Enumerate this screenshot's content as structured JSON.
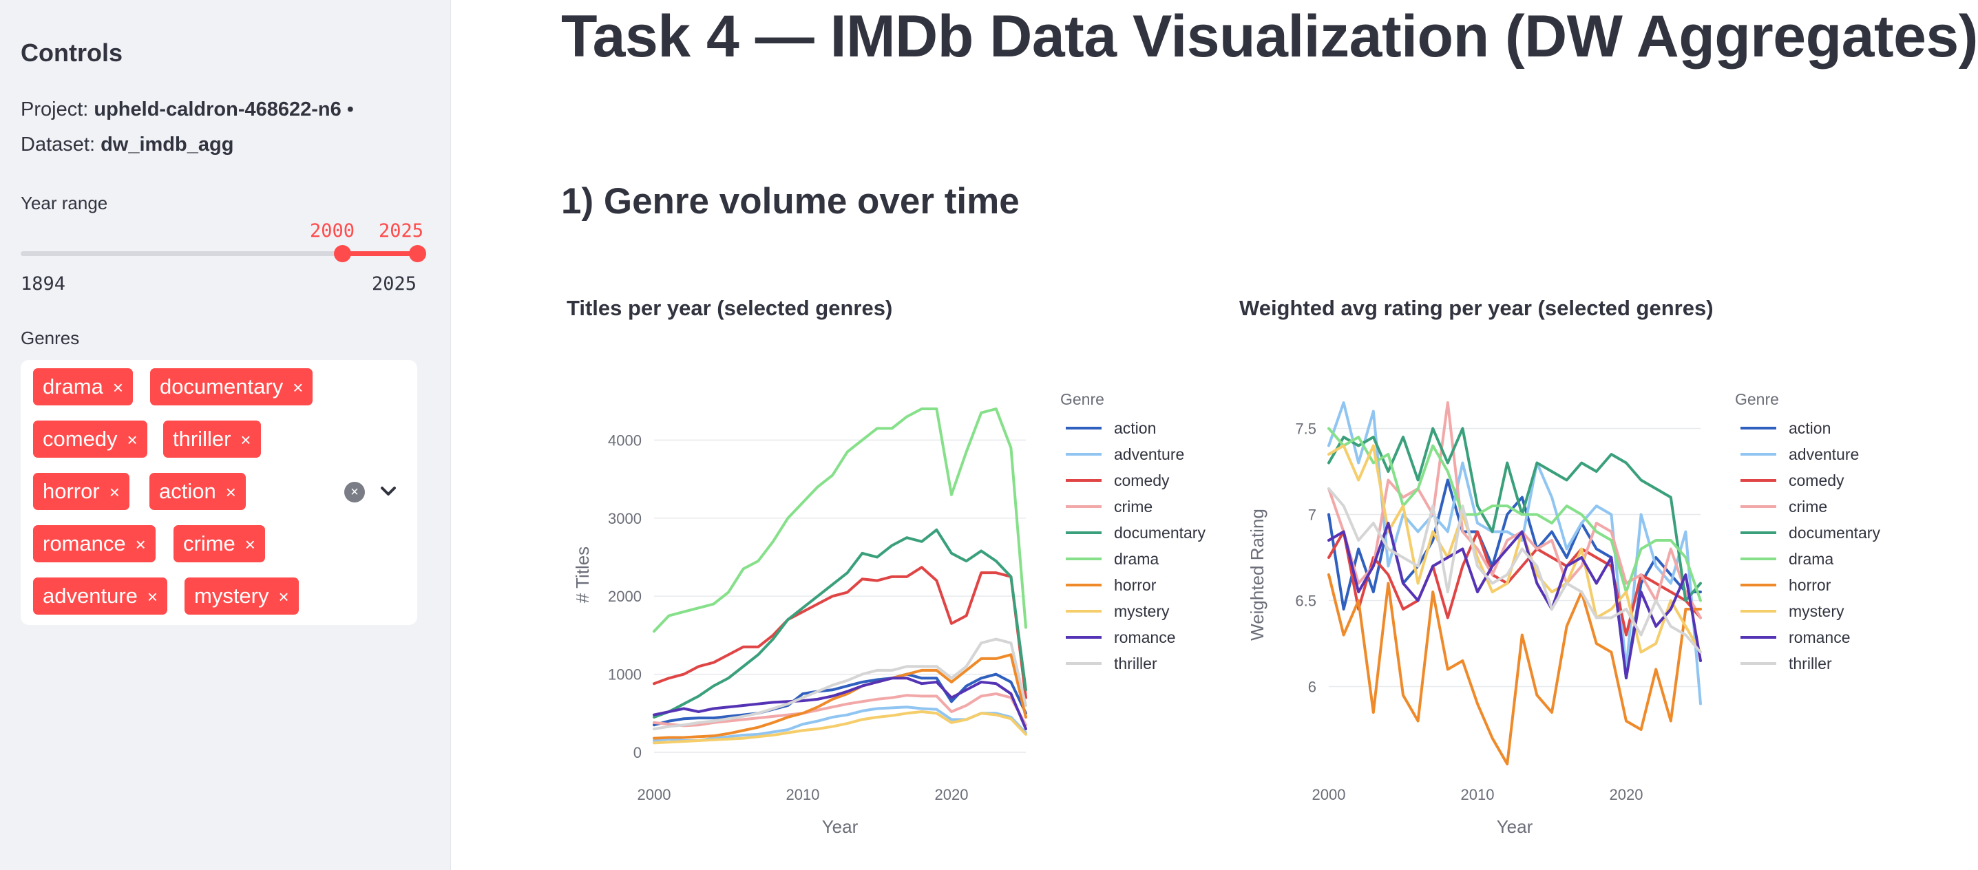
{
  "sidebar": {
    "heading": "Controls",
    "project_label": "Project: ",
    "project_value": "upheld-caldron-468622-n6",
    "dot": " •",
    "dataset_label": "Dataset: ",
    "dataset_value": "dw_imdb_agg",
    "year_range_label": "Year range",
    "year_range_min": "1894",
    "year_range_max": "2025",
    "year_selected_low": "2000",
    "year_selected_high": "2025",
    "slider_low_fraction": 0.809,
    "slider_high_fraction": 1.0,
    "genres_label": "Genres",
    "genre_tags": [
      "drama",
      "documentary",
      "comedy",
      "thriller",
      "horror",
      "action",
      "romance",
      "crime",
      "adventure",
      "mystery"
    ],
    "tag_remove_glyph": "×",
    "clear_icon": "clear-icon",
    "dropdown_icon": "chevron-down-icon",
    "accent_color": "#ff4b4b"
  },
  "main": {
    "title": "Task 4 — IMDb Data Visualization (DW Aggregates)",
    "section_heading": "1) Genre volume over time"
  },
  "chart_data": [
    {
      "type": "line",
      "title": "Titles per year (selected genres)",
      "xlabel": "Year",
      "ylabel": "# Titles",
      "legend_title": "Genre",
      "legend_placement": "right",
      "xlim": [
        2000,
        2025
      ],
      "ylim": [
        -150,
        4700
      ],
      "x_ticks": [
        2000,
        2010,
        2020
      ],
      "y_ticks": [
        0,
        1000,
        2000,
        3000,
        4000
      ],
      "grid": true,
      "x": [
        2000,
        2001,
        2002,
        2003,
        2004,
        2005,
        2006,
        2007,
        2008,
        2009,
        2010,
        2011,
        2012,
        2013,
        2014,
        2015,
        2016,
        2017,
        2018,
        2019,
        2020,
        2021,
        2022,
        2023,
        2024,
        2025
      ],
      "series": [
        {
          "name": "action",
          "color": "#2f5fbf",
          "values": [
            350,
            400,
            430,
            440,
            440,
            460,
            480,
            500,
            550,
            600,
            750,
            780,
            800,
            850,
            900,
            930,
            950,
            1000,
            950,
            950,
            650,
            850,
            950,
            1000,
            900,
            500
          ]
        },
        {
          "name": "adventure",
          "color": "#90c5f2",
          "values": [
            150,
            170,
            150,
            150,
            180,
            200,
            220,
            230,
            260,
            290,
            360,
            400,
            450,
            480,
            530,
            560,
            570,
            580,
            560,
            550,
            420,
            420,
            500,
            500,
            450,
            250
          ]
        },
        {
          "name": "comedy",
          "color": "#e04545",
          "values": [
            880,
            950,
            1000,
            1100,
            1150,
            1250,
            1350,
            1350,
            1500,
            1700,
            1800,
            1900,
            2000,
            2050,
            2220,
            2200,
            2250,
            2250,
            2370,
            2200,
            1650,
            1750,
            2300,
            2300,
            2250,
            700
          ]
        },
        {
          "name": "crime",
          "color": "#f2a8a8",
          "values": [
            380,
            360,
            340,
            350,
            380,
            400,
            420,
            440,
            460,
            480,
            500,
            540,
            580,
            620,
            650,
            680,
            700,
            730,
            720,
            720,
            520,
            600,
            720,
            750,
            700,
            350
          ]
        },
        {
          "name": "documentary",
          "color": "#3aa07b",
          "values": [
            450,
            520,
            620,
            720,
            850,
            950,
            1100,
            1250,
            1450,
            1700,
            1850,
            2000,
            2150,
            2300,
            2550,
            2500,
            2650,
            2750,
            2700,
            2850,
            2550,
            2450,
            2580,
            2450,
            2250,
            800
          ]
        },
        {
          "name": "drama",
          "color": "#86e08a",
          "values": [
            1550,
            1750,
            1800,
            1850,
            1900,
            2050,
            2350,
            2450,
            2700,
            3000,
            3200,
            3400,
            3550,
            3850,
            4000,
            4150,
            4150,
            4300,
            4400,
            4400,
            3300,
            3850,
            4350,
            4400,
            3900,
            1600
          ]
        },
        {
          "name": "horror",
          "color": "#ef8a2a",
          "values": [
            180,
            190,
            190,
            200,
            210,
            240,
            280,
            320,
            380,
            450,
            500,
            580,
            680,
            750,
            850,
            900,
            950,
            1000,
            1050,
            1050,
            900,
            1050,
            1200,
            1200,
            1250,
            450
          ]
        },
        {
          "name": "mystery",
          "color": "#f5cd6a",
          "values": [
            120,
            130,
            140,
            150,
            160,
            170,
            180,
            200,
            220,
            250,
            280,
            300,
            330,
            370,
            420,
            450,
            470,
            500,
            520,
            500,
            380,
            420,
            500,
            480,
            430,
            230
          ]
        },
        {
          "name": "romance",
          "color": "#5533b5",
          "values": [
            480,
            520,
            560,
            520,
            560,
            580,
            600,
            620,
            640,
            650,
            660,
            680,
            720,
            780,
            850,
            900,
            950,
            950,
            880,
            900,
            700,
            800,
            900,
            880,
            750,
            300
          ]
        },
        {
          "name": "thriller",
          "color": "#d5d5d5",
          "values": [
            300,
            330,
            350,
            380,
            400,
            430,
            460,
            500,
            560,
            620,
            700,
            780,
            860,
            920,
            1000,
            1050,
            1050,
            1100,
            1100,
            1100,
            950,
            1100,
            1400,
            1450,
            1400,
            600
          ]
        }
      ]
    },
    {
      "type": "line",
      "title": "Weighted avg rating per year (selected genres)",
      "xlabel": "Year",
      "ylabel": "Weighted Rating",
      "legend_title": "Genre",
      "legend_placement": "right",
      "xlim": [
        2000,
        2025
      ],
      "ylim": [
        5.55,
        7.75
      ],
      "x_ticks": [
        2000,
        2010,
        2020
      ],
      "y_ticks": [
        6,
        6.5,
        7,
        7.5
      ],
      "y_tick_labels": [
        "6",
        "6.5",
        "7",
        "7.5"
      ],
      "grid": true,
      "x": [
        2000,
        2001,
        2002,
        2003,
        2004,
        2005,
        2006,
        2007,
        2008,
        2009,
        2010,
        2011,
        2012,
        2013,
        2014,
        2015,
        2016,
        2017,
        2018,
        2019,
        2020,
        2021,
        2022,
        2023,
        2024,
        2025
      ],
      "series": [
        {
          "name": "action",
          "color": "#2f5fbf",
          "values": [
            7.0,
            6.45,
            6.8,
            6.55,
            6.95,
            6.6,
            6.7,
            6.85,
            7.2,
            6.9,
            6.9,
            6.7,
            7.0,
            7.1,
            6.8,
            6.9,
            6.75,
            6.95,
            6.8,
            6.75,
            6.05,
            6.6,
            6.75,
            6.65,
            6.55,
            6.55
          ]
        },
        {
          "name": "adventure",
          "color": "#90c5f2",
          "values": [
            7.4,
            7.65,
            7.3,
            7.6,
            6.7,
            7.0,
            6.9,
            7.0,
            6.9,
            7.3,
            6.95,
            6.9,
            6.9,
            6.85,
            7.3,
            7.1,
            6.8,
            6.95,
            7.05,
            7.0,
            6.1,
            7.0,
            6.7,
            6.6,
            6.9,
            5.9
          ]
        },
        {
          "name": "comedy",
          "color": "#e04545",
          "values": [
            6.75,
            6.9,
            6.45,
            6.75,
            6.65,
            6.45,
            6.5,
            6.7,
            6.4,
            6.7,
            6.9,
            6.65,
            6.6,
            6.7,
            6.8,
            6.75,
            6.7,
            6.8,
            6.75,
            6.7,
            6.3,
            6.65,
            6.6,
            6.55,
            6.5,
            6.4
          ]
        },
        {
          "name": "crime",
          "color": "#f2a8a8",
          "values": [
            7.15,
            6.9,
            6.6,
            6.7,
            7.2,
            7.1,
            7.15,
            7.0,
            7.65,
            6.9,
            6.8,
            6.65,
            6.85,
            6.9,
            6.8,
            6.85,
            6.6,
            6.7,
            6.95,
            6.9,
            6.6,
            6.65,
            6.5,
            6.8,
            6.55,
            6.4
          ]
        },
        {
          "name": "documentary",
          "color": "#3aa07b",
          "values": [
            7.3,
            7.45,
            7.4,
            7.45,
            7.25,
            7.45,
            7.2,
            7.5,
            7.3,
            7.5,
            7.05,
            6.9,
            7.3,
            7.0,
            7.3,
            7.25,
            7.2,
            7.3,
            7.25,
            7.35,
            7.3,
            7.2,
            7.15,
            7.1,
            6.5,
            6.6
          ]
        },
        {
          "name": "drama",
          "color": "#86e08a",
          "values": [
            7.5,
            7.4,
            7.45,
            7.3,
            7.35,
            7.05,
            7.15,
            7.4,
            7.25,
            7.0,
            7.0,
            7.05,
            7.05,
            7.0,
            7.0,
            6.95,
            7.05,
            7.0,
            6.9,
            6.85,
            6.55,
            6.8,
            6.85,
            6.85,
            6.75,
            6.5
          ]
        },
        {
          "name": "horror",
          "color": "#ef8a2a",
          "values": [
            6.65,
            6.3,
            6.5,
            5.85,
            6.6,
            5.95,
            5.8,
            6.55,
            6.1,
            6.15,
            5.9,
            5.7,
            5.55,
            6.3,
            5.95,
            5.85,
            6.35,
            6.55,
            6.25,
            6.2,
            5.8,
            5.75,
            6.1,
            5.8,
            6.45,
            6.45
          ]
        },
        {
          "name": "mystery",
          "color": "#f5cd6a",
          "values": [
            7.35,
            7.4,
            7.2,
            7.4,
            6.9,
            7.05,
            6.6,
            6.9,
            6.75,
            7.0,
            6.75,
            6.55,
            6.6,
            6.9,
            6.65,
            6.55,
            6.6,
            6.8,
            6.4,
            6.45,
            6.55,
            6.2,
            6.25,
            6.5,
            6.35,
            6.2
          ]
        },
        {
          "name": "romance",
          "color": "#5533b5",
          "values": [
            6.85,
            6.9,
            6.55,
            6.7,
            6.95,
            6.6,
            6.5,
            6.7,
            6.75,
            6.8,
            6.55,
            6.7,
            6.8,
            6.9,
            6.6,
            6.45,
            6.7,
            6.75,
            6.6,
            6.75,
            6.05,
            6.55,
            6.35,
            6.45,
            6.65,
            6.15
          ]
        },
        {
          "name": "thriller",
          "color": "#d5d5d5",
          "values": [
            7.15,
            7.05,
            6.85,
            6.95,
            6.8,
            6.75,
            6.7,
            7.05,
            6.55,
            7.05,
            6.7,
            6.6,
            6.65,
            6.8,
            6.7,
            6.45,
            6.6,
            6.55,
            6.4,
            6.4,
            6.45,
            6.3,
            6.5,
            6.35,
            6.3,
            6.2
          ]
        }
      ]
    }
  ]
}
